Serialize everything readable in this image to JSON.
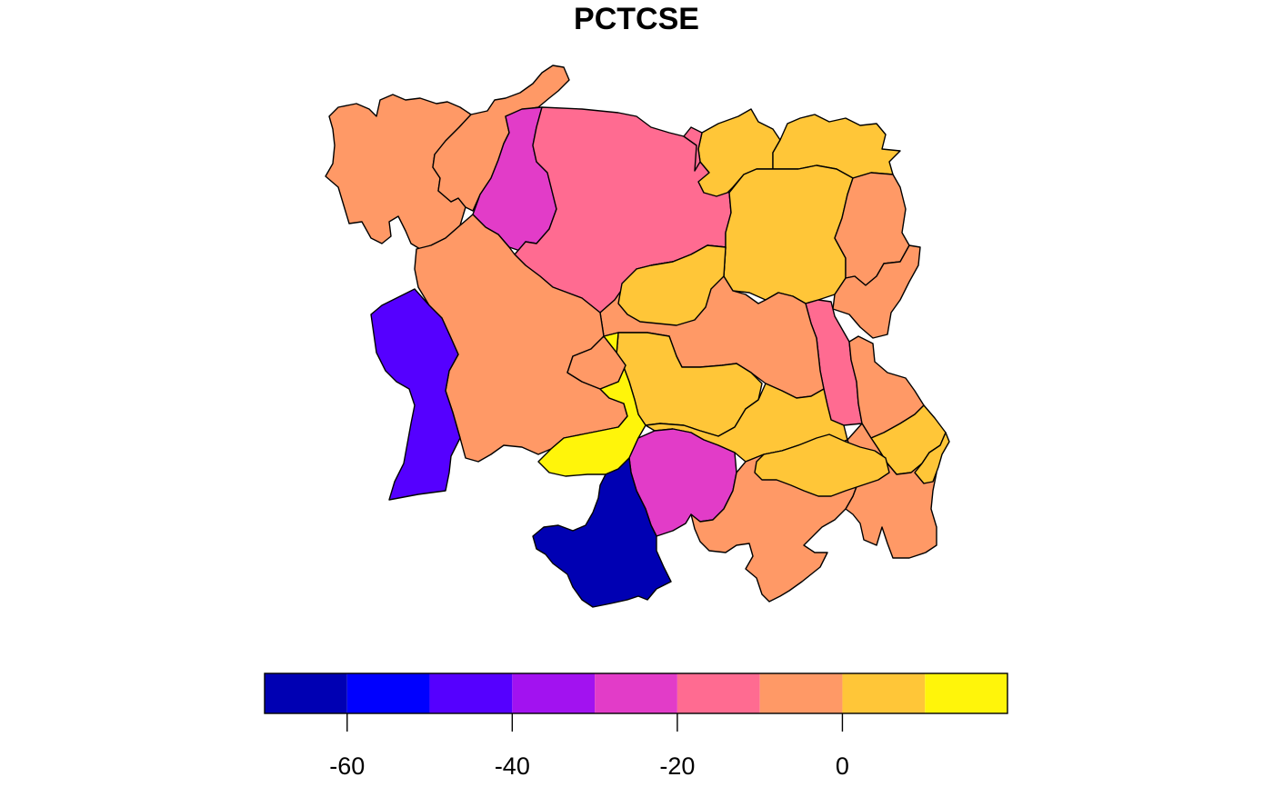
{
  "title": "PCTCSE",
  "palette": {
    "bin_colors": [
      "#0000B3",
      "#0000FF",
      "#5500FF",
      "#A212F0",
      "#E23CC8",
      "#FF6B91",
      "#FF9966",
      "#FFC638",
      "#FFF50A"
    ],
    "outline": "#000000"
  },
  "legend": {
    "type": "colorbar",
    "placement": "bottom",
    "breaks": [
      -70,
      -60,
      -50,
      -40,
      -30,
      -20,
      -10,
      0,
      10,
      20
    ],
    "ticks": [
      -60,
      -40,
      -20,
      0
    ],
    "tick_labels": [
      "-60",
      "-40",
      "-20",
      "0"
    ]
  },
  "regions": [
    {
      "id": "r01",
      "bin": 6
    },
    {
      "id": "r02",
      "bin": 6
    },
    {
      "id": "r03",
      "bin": 4
    },
    {
      "id": "r04",
      "bin": 5
    },
    {
      "id": "r05",
      "bin": 7
    },
    {
      "id": "r06",
      "bin": 7
    },
    {
      "id": "r07",
      "bin": 7
    },
    {
      "id": "r08",
      "bin": 6
    },
    {
      "id": "r09",
      "bin": 6
    },
    {
      "id": "r10",
      "bin": 5
    },
    {
      "id": "r11",
      "bin": 6
    },
    {
      "id": "r12",
      "bin": 7
    },
    {
      "id": "r13",
      "bin": 6
    },
    {
      "id": "r14",
      "bin": 2
    },
    {
      "id": "r15",
      "bin": 6
    },
    {
      "id": "r16",
      "bin": 7
    },
    {
      "id": "r17",
      "bin": 8
    },
    {
      "id": "r18",
      "bin": 7
    },
    {
      "id": "r19",
      "bin": 6
    },
    {
      "id": "r20",
      "bin": 4
    },
    {
      "id": "r21",
      "bin": 0
    },
    {
      "id": "r22",
      "bin": 6
    },
    {
      "id": "r23",
      "bin": 7
    },
    {
      "id": "r24",
      "bin": 5
    },
    {
      "id": "r25",
      "bin": 6
    },
    {
      "id": "r26",
      "bin": 7
    },
    {
      "id": "r27",
      "bin": 7
    }
  ]
}
